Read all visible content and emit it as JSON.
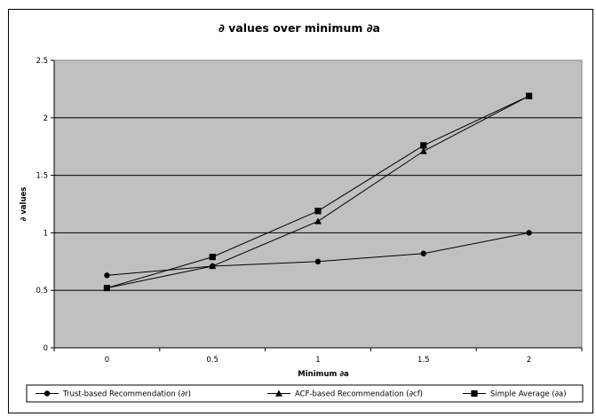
{
  "chart_data": {
    "type": "line",
    "title": "∂ values over minimum ∂a",
    "xlabel": "Minimum ∂a",
    "ylabel": "∂ values",
    "categories": [
      "0",
      "0.5",
      "1",
      "1.5",
      "2"
    ],
    "ylim": [
      0,
      2.5
    ],
    "yticks": [
      "0",
      "0.5",
      "1",
      "1.5",
      "2",
      "2.5"
    ],
    "grid": true,
    "legend_position": "bottom",
    "plot_background": "#c0c0c0",
    "line_color": "#000000",
    "series": [
      {
        "name": "Trust-based Recommendation  (∂r)",
        "marker": "circle",
        "values": [
          0.63,
          0.71,
          0.75,
          0.82,
          1.0
        ]
      },
      {
        "name": "ACF-based Recommendation (∂cf)",
        "marker": "triangle",
        "values": [
          0.52,
          0.71,
          1.1,
          1.71,
          2.19
        ]
      },
      {
        "name": "Simple Average  (∂a)",
        "marker": "square",
        "values": [
          0.52,
          0.79,
          1.19,
          1.76,
          2.19
        ]
      }
    ]
  }
}
